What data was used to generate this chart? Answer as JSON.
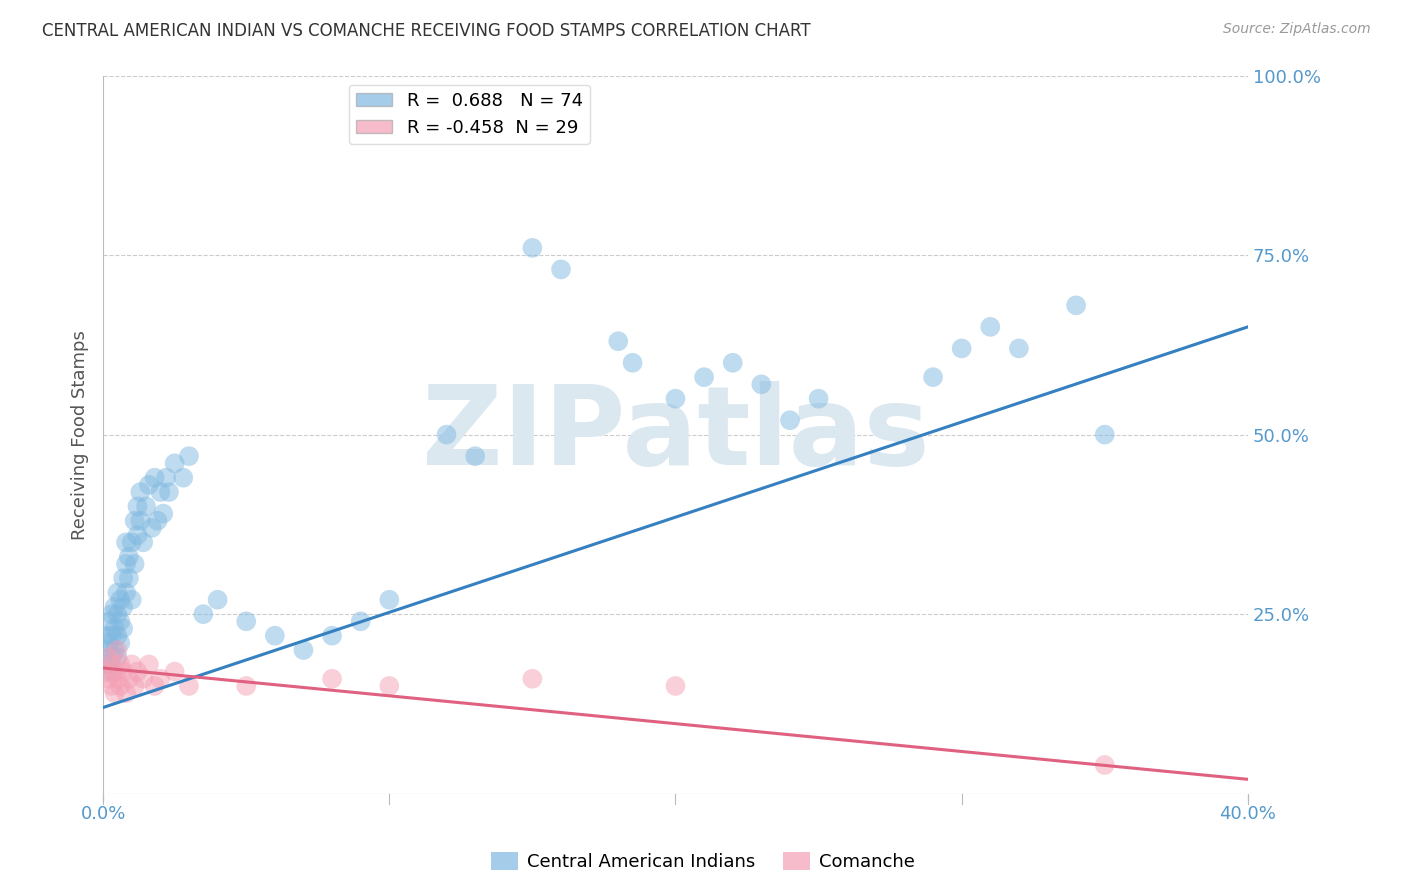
{
  "title": "CENTRAL AMERICAN INDIAN VS COMANCHE RECEIVING FOOD STAMPS CORRELATION CHART",
  "source": "Source: ZipAtlas.com",
  "ylabel": "Receiving Food Stamps",
  "xlim": [
    0.0,
    0.4
  ],
  "ylim": [
    0.0,
    1.0
  ],
  "xticks": [
    0.0,
    0.4
  ],
  "xtick_labels": [
    "0.0%",
    "40.0%"
  ],
  "yticks": [
    0.25,
    0.5,
    0.75,
    1.0
  ],
  "ytick_labels": [
    "25.0%",
    "50.0%",
    "75.0%",
    "100.0%"
  ],
  "blue_R": 0.688,
  "blue_N": 74,
  "pink_R": -0.458,
  "pink_N": 29,
  "blue_color": "#7fb8e0",
  "pink_color": "#f4a0b5",
  "blue_line_color": "#3580c0",
  "pink_line_color": "#e06080",
  "background_color": "#ffffff",
  "grid_color": "#cccccc",
  "watermark": "ZIPatlas",
  "watermark_color": "#dce8f0",
  "legend_label_blue": "Central American Indians",
  "legend_label_pink": "Comanche",
  "title_color": "#333333",
  "axis_label_color": "#555555",
  "tick_color": "#5599cc",
  "blue_line_x": [
    0.0,
    0.4
  ],
  "blue_line_y": [
    0.12,
    0.65
  ],
  "pink_line_x": [
    0.0,
    0.4
  ],
  "pink_line_y": [
    0.175,
    0.02
  ],
  "blue_scatter": [
    [
      0.001,
      0.2
    ],
    [
      0.001,
      0.22
    ],
    [
      0.002,
      0.18
    ],
    [
      0.002,
      0.21
    ],
    [
      0.002,
      0.24
    ],
    [
      0.003,
      0.19
    ],
    [
      0.003,
      0.22
    ],
    [
      0.003,
      0.25
    ],
    [
      0.003,
      0.17
    ],
    [
      0.004,
      0.23
    ],
    [
      0.004,
      0.2
    ],
    [
      0.004,
      0.26
    ],
    [
      0.005,
      0.22
    ],
    [
      0.005,
      0.25
    ],
    [
      0.005,
      0.19
    ],
    [
      0.005,
      0.28
    ],
    [
      0.006,
      0.24
    ],
    [
      0.006,
      0.27
    ],
    [
      0.006,
      0.21
    ],
    [
      0.007,
      0.26
    ],
    [
      0.007,
      0.3
    ],
    [
      0.007,
      0.23
    ],
    [
      0.008,
      0.28
    ],
    [
      0.008,
      0.32
    ],
    [
      0.008,
      0.35
    ],
    [
      0.009,
      0.3
    ],
    [
      0.009,
      0.33
    ],
    [
      0.01,
      0.27
    ],
    [
      0.01,
      0.35
    ],
    [
      0.011,
      0.32
    ],
    [
      0.011,
      0.38
    ],
    [
      0.012,
      0.36
    ],
    [
      0.012,
      0.4
    ],
    [
      0.013,
      0.38
    ],
    [
      0.013,
      0.42
    ],
    [
      0.014,
      0.35
    ],
    [
      0.015,
      0.4
    ],
    [
      0.016,
      0.43
    ],
    [
      0.017,
      0.37
    ],
    [
      0.018,
      0.44
    ],
    [
      0.019,
      0.38
    ],
    [
      0.02,
      0.42
    ],
    [
      0.021,
      0.39
    ],
    [
      0.022,
      0.44
    ],
    [
      0.023,
      0.42
    ],
    [
      0.025,
      0.46
    ],
    [
      0.028,
      0.44
    ],
    [
      0.03,
      0.47
    ],
    [
      0.035,
      0.25
    ],
    [
      0.04,
      0.27
    ],
    [
      0.05,
      0.24
    ],
    [
      0.06,
      0.22
    ],
    [
      0.07,
      0.2
    ],
    [
      0.08,
      0.22
    ],
    [
      0.09,
      0.24
    ],
    [
      0.1,
      0.27
    ],
    [
      0.12,
      0.5
    ],
    [
      0.13,
      0.47
    ],
    [
      0.15,
      0.76
    ],
    [
      0.16,
      0.73
    ],
    [
      0.18,
      0.63
    ],
    [
      0.185,
      0.6
    ],
    [
      0.2,
      0.55
    ],
    [
      0.21,
      0.58
    ],
    [
      0.22,
      0.6
    ],
    [
      0.23,
      0.57
    ],
    [
      0.24,
      0.52
    ],
    [
      0.25,
      0.55
    ],
    [
      0.29,
      0.58
    ],
    [
      0.3,
      0.62
    ],
    [
      0.31,
      0.65
    ],
    [
      0.32,
      0.62
    ],
    [
      0.34,
      0.68
    ],
    [
      0.35,
      0.5
    ]
  ],
  "pink_scatter": [
    [
      0.001,
      0.17
    ],
    [
      0.002,
      0.19
    ],
    [
      0.002,
      0.16
    ],
    [
      0.003,
      0.18
    ],
    [
      0.003,
      0.15
    ],
    [
      0.004,
      0.17
    ],
    [
      0.004,
      0.14
    ],
    [
      0.005,
      0.16
    ],
    [
      0.005,
      0.2
    ],
    [
      0.006,
      0.18
    ],
    [
      0.006,
      0.15
    ],
    [
      0.007,
      0.17
    ],
    [
      0.008,
      0.14
    ],
    [
      0.009,
      0.16
    ],
    [
      0.01,
      0.18
    ],
    [
      0.011,
      0.15
    ],
    [
      0.012,
      0.17
    ],
    [
      0.014,
      0.16
    ],
    [
      0.016,
      0.18
    ],
    [
      0.018,
      0.15
    ],
    [
      0.02,
      0.16
    ],
    [
      0.025,
      0.17
    ],
    [
      0.03,
      0.15
    ],
    [
      0.05,
      0.15
    ],
    [
      0.08,
      0.16
    ],
    [
      0.1,
      0.15
    ],
    [
      0.15,
      0.16
    ],
    [
      0.2,
      0.15
    ],
    [
      0.35,
      0.04
    ]
  ]
}
